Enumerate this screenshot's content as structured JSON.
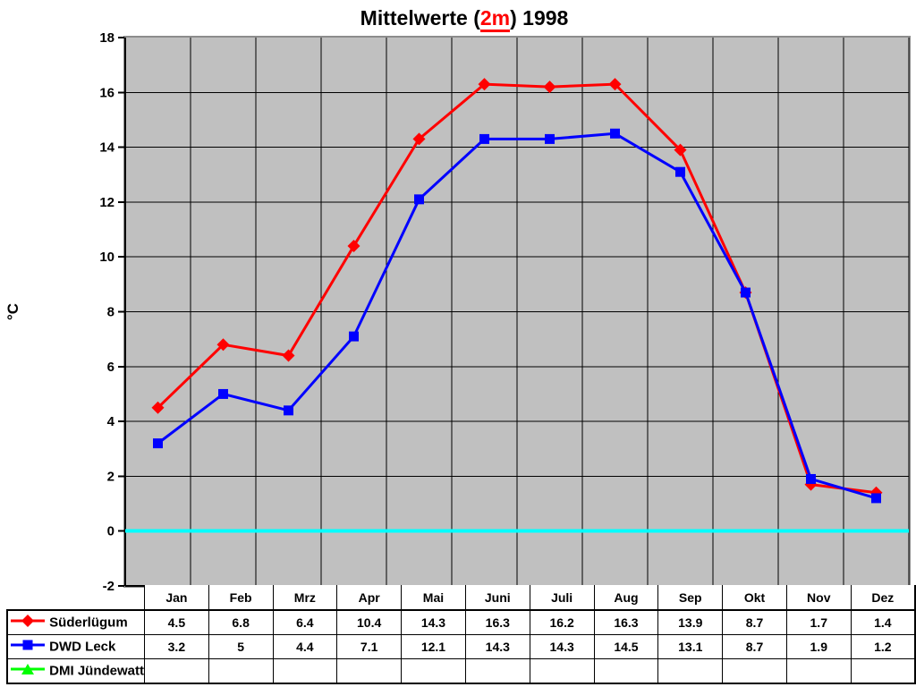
{
  "chart_data": {
    "type": "line",
    "title": {
      "prefix": "Mittelwerte (",
      "highlight": "2m",
      "suffix": ") 1998"
    },
    "ylabel": "°C",
    "xlabel": "",
    "ylim": [
      -2,
      18
    ],
    "ytick_step": 2,
    "yticks": [
      -2,
      0,
      2,
      4,
      6,
      8,
      10,
      12,
      14,
      16,
      18
    ],
    "grid": true,
    "plot_bg": "#C0C0C0",
    "grid_color": "#000000",
    "plot_border_color": "#8C8C8C",
    "zero_line_color": "#00FFFF",
    "legend_position": "table-left",
    "categories": [
      "Jan",
      "Feb",
      "Mrz",
      "Apr",
      "Mai",
      "Juni",
      "Juli",
      "Aug",
      "Sep",
      "Okt",
      "Nov",
      "Dez"
    ],
    "series": [
      {
        "name": "Süderlügum",
        "color": "#FF0000",
        "marker": "diamond",
        "values": [
          4.5,
          6.8,
          6.4,
          10.4,
          14.3,
          16.3,
          16.2,
          16.3,
          13.9,
          8.7,
          1.7,
          1.4
        ]
      },
      {
        "name": "DWD Leck",
        "color": "#0000FF",
        "marker": "square",
        "values": [
          3.2,
          5,
          4.4,
          7.1,
          12.1,
          14.3,
          14.3,
          14.5,
          13.1,
          8.7,
          1.9,
          1.2
        ]
      },
      {
        "name": "DMI Jündewatt",
        "color": "#00FF00",
        "marker": "triangle",
        "values": []
      }
    ]
  }
}
